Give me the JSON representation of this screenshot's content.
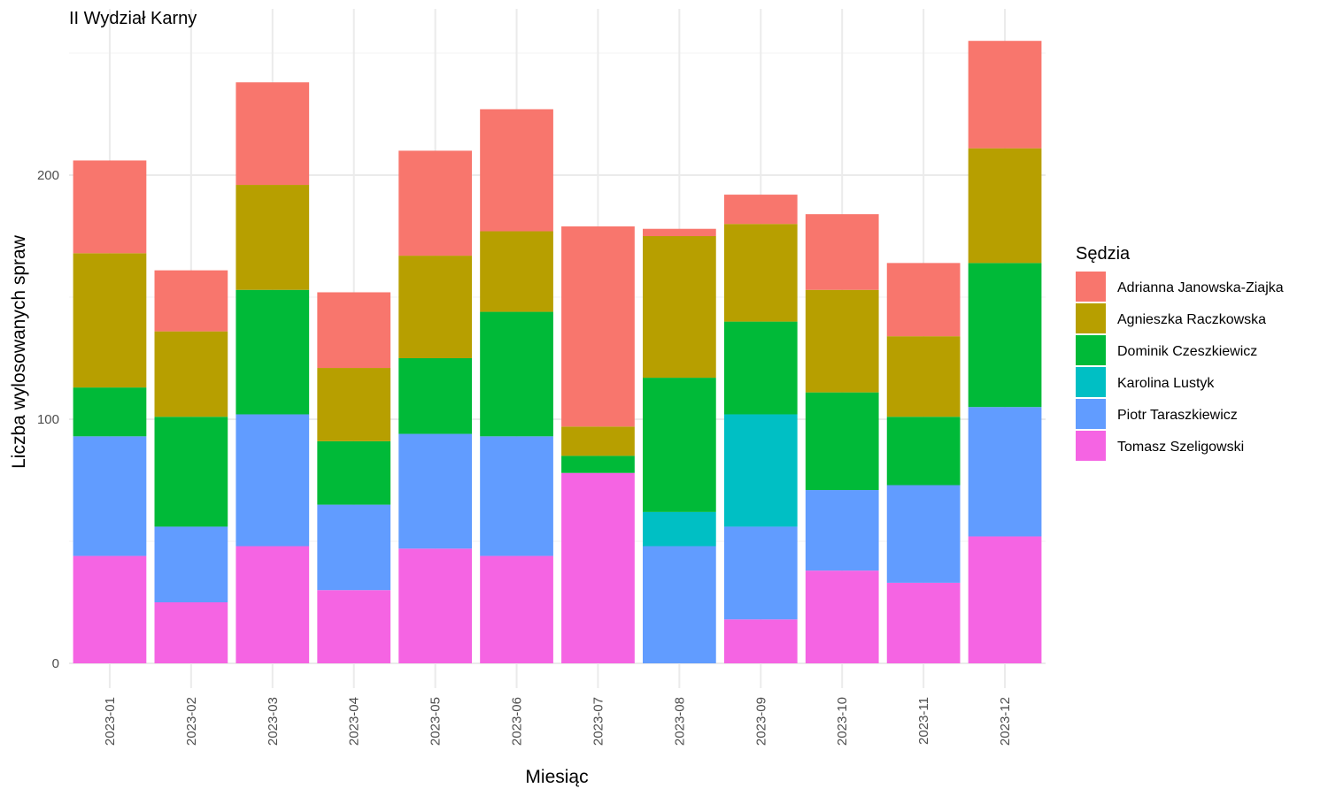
{
  "chart_data": {
    "type": "bar",
    "stacked": true,
    "title": "II Wydział Karny",
    "xlabel": "Miesiąc",
    "ylabel": "Liczba wylosowanych spraw",
    "ylim": [
      0,
      260
    ],
    "y_ticks": [
      0,
      100,
      200
    ],
    "grid": true,
    "legend_position": "right",
    "legend_title": "Sędzia",
    "categories": [
      "2023-01",
      "2023-02",
      "2023-03",
      "2023-04",
      "2023-05",
      "2023-06",
      "2023-07",
      "2023-08",
      "2023-09",
      "2023-10",
      "2023-11",
      "2023-12"
    ],
    "series": [
      {
        "name": "Tomasz Szeligowski",
        "color": "#F564E3",
        "values": [
          44,
          25,
          48,
          30,
          47,
          44,
          78,
          0,
          18,
          38,
          33,
          52
        ]
      },
      {
        "name": "Piotr Taraszkiewicz",
        "color": "#619CFF",
        "values": [
          49,
          31,
          54,
          35,
          47,
          49,
          0,
          48,
          38,
          33,
          40,
          53
        ]
      },
      {
        "name": "Karolina Lustyk",
        "color": "#00BFC4",
        "values": [
          0,
          0,
          0,
          0,
          0,
          0,
          0,
          14,
          46,
          0,
          0,
          0
        ]
      },
      {
        "name": "Dominik Czeszkiewicz",
        "color": "#00BA38",
        "values": [
          20,
          45,
          51,
          26,
          31,
          51,
          7,
          55,
          38,
          40,
          28,
          59
        ]
      },
      {
        "name": "Agnieszka Raczkowska",
        "color": "#B79F00",
        "values": [
          55,
          35,
          43,
          30,
          42,
          33,
          12,
          58,
          40,
          42,
          33,
          47
        ]
      },
      {
        "name": "Adrianna Janowska-Ziajka",
        "color": "#F8766D",
        "values": [
          38,
          25,
          42,
          31,
          43,
          50,
          82,
          3,
          12,
          31,
          30,
          44
        ]
      }
    ],
    "legend_order": [
      "Adrianna Janowska-Ziajka",
      "Agnieszka Raczkowska",
      "Dominik Czeszkiewicz",
      "Karolina Lustyk",
      "Piotr Taraszkiewicz",
      "Tomasz Szeligowski"
    ]
  }
}
